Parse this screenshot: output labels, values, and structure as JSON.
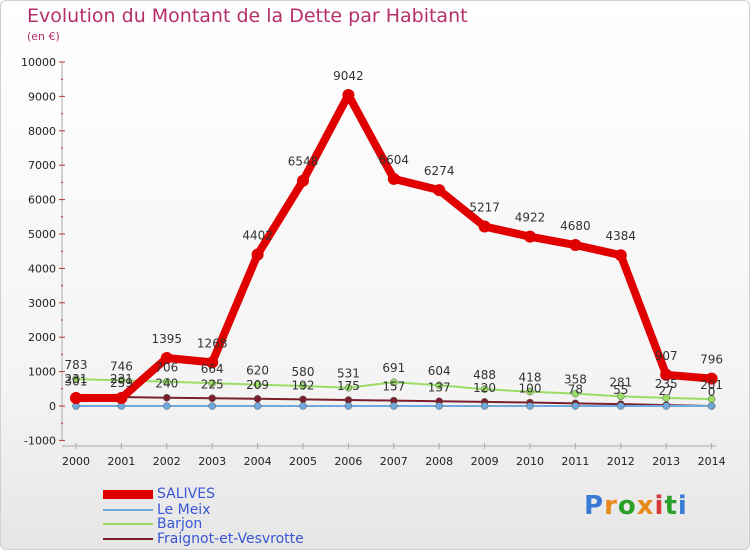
{
  "title": "Evolution du Montant de la Dette par Habitant",
  "subtitle": "(en €)",
  "logo": {
    "text": "Proxiti",
    "colors": [
      "#3a7bd5",
      "#e8891a",
      "#2aa02a",
      "#e8891a",
      "#d63a3a",
      "#2aa02a",
      "#3a7bd5"
    ]
  },
  "chart_data": {
    "type": "line",
    "title": "Evolution du Montant de la Dette par Habitant",
    "ylabel": "(en €)",
    "x": [
      2000,
      2001,
      2002,
      2003,
      2004,
      2005,
      2006,
      2007,
      2008,
      2009,
      2010,
      2011,
      2012,
      2013,
      2014
    ],
    "ylim": [
      -1000,
      10000
    ],
    "yticks": [
      -1000,
      0,
      1000,
      2000,
      3000,
      4000,
      5000,
      6000,
      7000,
      8000,
      9000,
      10000
    ],
    "grid": false,
    "legend": "bottom-left",
    "series": [
      {
        "name": "SALIVES",
        "color": "#e00000",
        "width": 8,
        "values": [
          231,
          231,
          1395,
          1268,
          4402,
          6548,
          9042,
          6604,
          6274,
          5217,
          4922,
          4680,
          4384,
          907,
          796
        ]
      },
      {
        "name": "Le Meix",
        "color": "#6fa8dc",
        "width": 2,
        "values": [
          0,
          0,
          0,
          0,
          0,
          0,
          0,
          0,
          0,
          0,
          0,
          0,
          0,
          0,
          0
        ]
      },
      {
        "name": "Barjon",
        "color": "#99dd66",
        "width": 2,
        "values": [
          783,
          746,
          706,
          664,
          620,
          580,
          531,
          691,
          604,
          488,
          418,
          358,
          281,
          235,
          201
        ]
      },
      {
        "name": "Fraignot-et-Vesvrotte",
        "color": "#7a1f2b",
        "width": 2,
        "values": [
          301,
          259,
          240,
          225,
          209,
          192,
          175,
          157,
          137,
          120,
          100,
          78,
          55,
          27,
          0
        ]
      }
    ]
  }
}
